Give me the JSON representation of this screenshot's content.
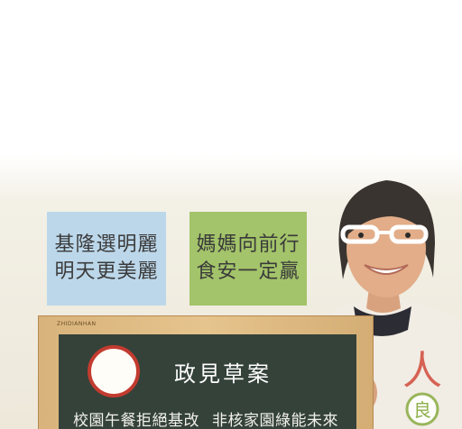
{
  "cards": [
    {
      "lines": [
        "基隆選明麗",
        "明天更美麗"
      ],
      "bg": "#bcd7ea"
    },
    {
      "lines": [
        "媽媽向前行",
        "食安一定贏"
      ],
      "bg": "#a3c46a"
    }
  ],
  "board": {
    "brand": "ZHIDIANHAN",
    "title": "政見草案",
    "slogan_left": "校園午餐拒絕基改",
    "slogan_right": "非核家園綠能未來"
  },
  "logo": {
    "main_char": "人",
    "sub_char": "良"
  },
  "colors": {
    "stamp_red": "#c33b2f",
    "chalkboard": "#34423a",
    "logo_red": "#d24a3a",
    "logo_green": "#8fb04c"
  }
}
